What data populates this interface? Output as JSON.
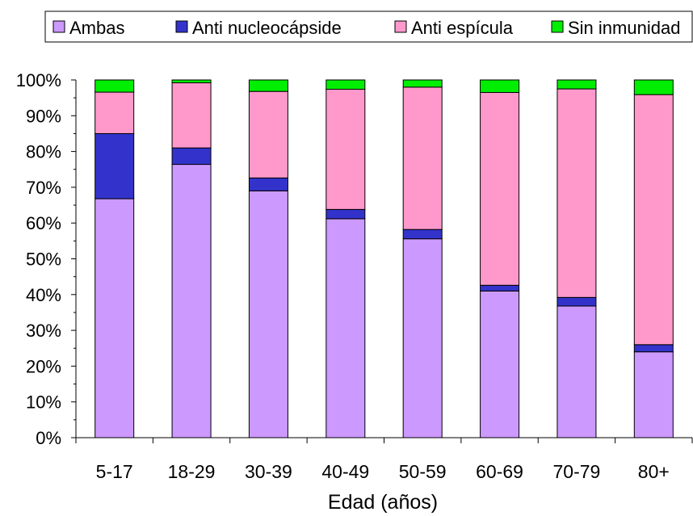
{
  "chart_data": {
    "type": "bar",
    "stacked": true,
    "percent": true,
    "xlabel": "Edad (años)",
    "ylabel": "",
    "ylim": [
      0,
      100
    ],
    "yticks": [
      "0%",
      "10%",
      "20%",
      "30%",
      "40%",
      "50%",
      "60%",
      "70%",
      "80%",
      "90%",
      "100%"
    ],
    "categories": [
      "5-17",
      "18-29",
      "30-39",
      "40-49",
      "50-59",
      "60-69",
      "70-79",
      "80+"
    ],
    "legend_position": "top",
    "grid": false,
    "series": [
      {
        "name": "Ambas",
        "color": "#cc99ff",
        "values": [
          66.8,
          76.4,
          69.0,
          61.2,
          55.6,
          41.0,
          36.8,
          24.0
        ]
      },
      {
        "name": "Anti nucleocápside",
        "color": "#3333cc",
        "values": [
          18.2,
          4.6,
          3.6,
          2.6,
          2.6,
          1.6,
          2.4,
          2.0
        ]
      },
      {
        "name": "Anti espícula",
        "color": "#ff99cc",
        "values": [
          11.6,
          18.2,
          24.2,
          33.6,
          39.8,
          53.9,
          58.3,
          69.9
        ]
      },
      {
        "name": "Sin inmunidad",
        "color": "#00ee00",
        "values": [
          3.4,
          0.8,
          3.2,
          2.6,
          2.0,
          3.5,
          2.5,
          4.1
        ]
      }
    ]
  }
}
